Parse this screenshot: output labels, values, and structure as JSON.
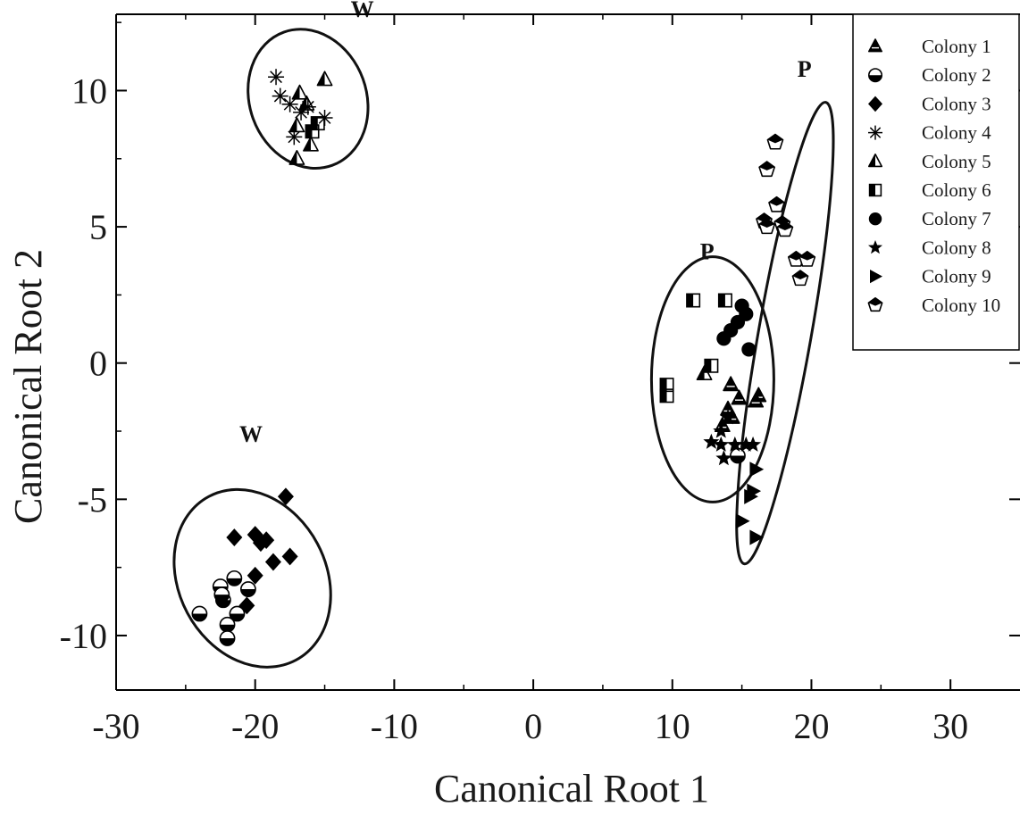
{
  "chart_data": {
    "type": "scatter",
    "title": "",
    "xlabel": "Canonical Root 1",
    "ylabel": "Canonical Root 2",
    "xlim": [
      -30,
      35
    ],
    "ylim": [
      -12,
      12.8
    ],
    "xticks": [
      -30,
      -20,
      -10,
      0,
      10,
      20,
      30
    ],
    "yticks": [
      -10,
      -5,
      0,
      5,
      10
    ],
    "xtick_labels": [
      "-30",
      "-20",
      "-10",
      "0",
      "10",
      "20",
      "30"
    ],
    "ytick_labels": [
      "-10",
      "-5",
      "0",
      "5",
      "10"
    ],
    "grid": false,
    "legend_position": "top-right",
    "series": [
      {
        "name": "Colony 1",
        "marker": "triangle",
        "color": "#000000",
        "points": [
          [
            14.2,
            -0.8
          ],
          [
            14.8,
            -1.3
          ],
          [
            14.0,
            -1.7
          ],
          [
            16.2,
            -1.2
          ],
          [
            13.6,
            -2.3
          ],
          [
            14.3,
            -2.0
          ],
          [
            16.0,
            -1.4
          ]
        ]
      },
      {
        "name": "Colony 2",
        "marker": "circle-half",
        "color": "#000000",
        "points": [
          [
            -24.0,
            -9.2
          ],
          [
            -22.5,
            -8.2
          ],
          [
            -21.5,
            -7.9
          ],
          [
            -20.5,
            -8.3
          ],
          [
            -22.3,
            -8.7
          ],
          [
            -21.3,
            -9.2
          ],
          [
            -22.0,
            -9.6
          ],
          [
            -22.0,
            -10.1
          ],
          [
            -22.4,
            -8.5
          ],
          [
            14.7,
            -3.4
          ]
        ]
      },
      {
        "name": "Colony 3",
        "marker": "diamond",
        "color": "#000000",
        "points": [
          [
            -21.5,
            -6.4
          ],
          [
            -20.0,
            -6.3
          ],
          [
            -19.6,
            -6.6
          ],
          [
            -19.2,
            -6.5
          ],
          [
            -18.7,
            -7.3
          ],
          [
            -17.5,
            -7.1
          ],
          [
            -17.8,
            -4.9
          ],
          [
            -20.0,
            -7.8
          ],
          [
            -20.6,
            -8.9
          ]
        ]
      },
      {
        "name": "Colony 4",
        "marker": "asterisk",
        "color": "#000000",
        "points": [
          [
            -18.5,
            10.5
          ],
          [
            -18.2,
            9.8
          ],
          [
            -17.2,
            8.3
          ],
          [
            -17.5,
            9.5
          ],
          [
            -16.7,
            9.2
          ],
          [
            -16.2,
            9.4
          ],
          [
            -15.0,
            9.0
          ]
        ]
      },
      {
        "name": "Colony 5",
        "marker": "triangle-half",
        "color": "#000000",
        "points": [
          [
            -15.0,
            10.4
          ],
          [
            -16.8,
            9.9
          ],
          [
            -16.3,
            9.5
          ],
          [
            -17.0,
            8.7
          ],
          [
            -16.0,
            8.0
          ],
          [
            -17.0,
            7.5
          ],
          [
            12.3,
            -0.4
          ]
        ]
      },
      {
        "name": "Colony 6",
        "marker": "square-half",
        "color": "#000000",
        "points": [
          [
            11.5,
            2.3
          ],
          [
            13.8,
            2.3
          ],
          [
            12.8,
            -0.1
          ],
          [
            9.6,
            -0.8
          ],
          [
            9.6,
            -1.2
          ],
          [
            -15.5,
            8.8
          ],
          [
            -15.9,
            8.5
          ]
        ]
      },
      {
        "name": "Colony 7",
        "marker": "circle",
        "color": "#000000",
        "points": [
          [
            15.0,
            2.1
          ],
          [
            14.7,
            1.5
          ],
          [
            14.2,
            1.2
          ],
          [
            13.7,
            0.9
          ],
          [
            15.3,
            1.8
          ],
          [
            15.5,
            0.5
          ]
        ]
      },
      {
        "name": "Colony 8",
        "marker": "star",
        "color": "#000000",
        "points": [
          [
            12.8,
            -2.9
          ],
          [
            13.5,
            -3.0
          ],
          [
            14.5,
            -3.0
          ],
          [
            15.3,
            -3.0
          ],
          [
            15.8,
            -3.0
          ],
          [
            13.7,
            -3.5
          ],
          [
            13.5,
            -2.5
          ],
          [
            14.0,
            -2.0
          ]
        ]
      },
      {
        "name": "Colony 9",
        "marker": "triangle-right",
        "color": "#000000",
        "points": [
          [
            16.0,
            -3.9
          ],
          [
            15.8,
            -4.7
          ],
          [
            15.6,
            -4.9
          ],
          [
            15.0,
            -5.8
          ],
          [
            16.0,
            -6.4
          ]
        ]
      },
      {
        "name": "Colony 10",
        "marker": "pentagon",
        "color": "#000000",
        "points": [
          [
            17.4,
            8.1
          ],
          [
            16.8,
            7.1
          ],
          [
            17.5,
            5.8
          ],
          [
            16.6,
            5.2
          ],
          [
            16.8,
            5.0
          ],
          [
            17.9,
            5.1
          ],
          [
            18.1,
            4.9
          ],
          [
            18.9,
            3.8
          ],
          [
            19.7,
            3.8
          ],
          [
            19.2,
            3.1
          ]
        ]
      }
    ],
    "annotations": [
      {
        "text": "W",
        "x": -12.3,
        "y": 12.7
      },
      {
        "text": "P",
        "x": 19.5,
        "y": 10.5
      },
      {
        "text": "P",
        "x": 12.5,
        "y": 3.8
      },
      {
        "text": "W",
        "x": -20.3,
        "y": -2.9
      }
    ],
    "ellipses": [
      {
        "label": "W",
        "cx": -16.2,
        "cy": 9.7,
        "rx": 4.2,
        "ry": 2.6,
        "angle_deg": -20
      },
      {
        "label": "P",
        "cx": 18.1,
        "cy": 1.1,
        "rx": 1.9,
        "ry": 8.6,
        "angle_deg": 10
      },
      {
        "label": "P",
        "cx": 12.9,
        "cy": -0.6,
        "rx": 4.4,
        "ry": 4.5,
        "angle_deg": 0
      },
      {
        "label": "W",
        "cx": -20.2,
        "cy": -7.9,
        "rx": 5.3,
        "ry": 3.4,
        "angle_deg": -28
      }
    ]
  }
}
